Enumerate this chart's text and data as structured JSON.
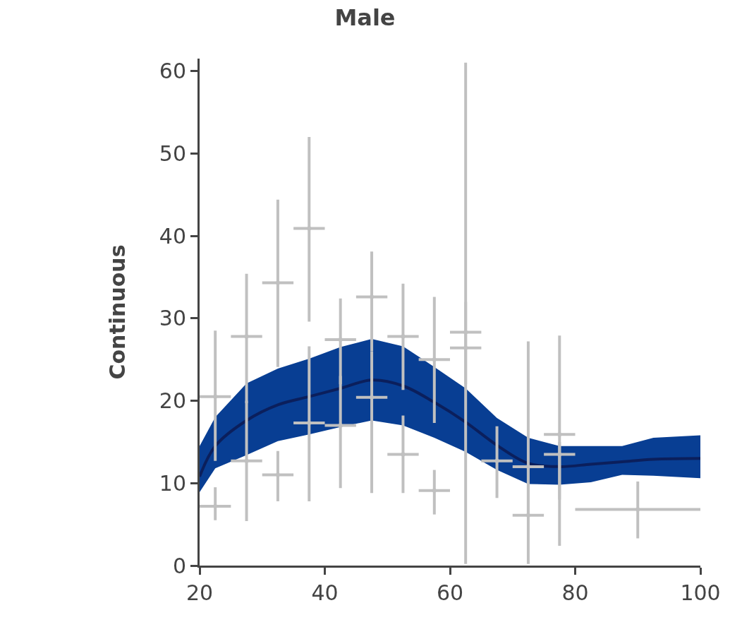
{
  "chart_data": {
    "type": "line",
    "title": "Male",
    "ylabel": "Continuous",
    "xlim": [
      20,
      100
    ],
    "xticks": [
      20,
      40,
      60,
      80,
      100
    ],
    "ylim": [
      0,
      61.5
    ],
    "yticks": [
      0,
      10,
      20,
      30,
      40,
      50,
      60
    ],
    "series": [
      {
        "type": "line",
        "color": "#0b1f5c",
        "x": [
          20,
          22.5,
          27.5,
          32.5,
          37.5,
          42.5,
          47.5,
          52.5,
          57.5,
          62.5,
          67.5,
          72.5,
          77.5,
          82.5,
          87.5,
          92.5,
          100
        ],
        "values": [
          10.8,
          14.5,
          17.6,
          19.5,
          20.5,
          21.5,
          22.5,
          21.8,
          19.8,
          17.4,
          14.6,
          12.4,
          12.0,
          12.3,
          12.6,
          12.9,
          13.0
        ],
        "lower": [
          8.9,
          11.8,
          13.4,
          15.1,
          15.9,
          16.8,
          17.6,
          17.0,
          15.5,
          13.8,
          11.6,
          9.9,
          9.8,
          10.1,
          11.0,
          10.9,
          10.6
        ],
        "upper": [
          14.5,
          18.0,
          22.1,
          23.9,
          25.1,
          26.5,
          27.5,
          26.6,
          24.1,
          21.5,
          17.9,
          15.5,
          14.5,
          14.5,
          14.5,
          15.5,
          15.8
        ]
      },
      {
        "type": "scatter",
        "color": "#c0c0c0",
        "marker": "none",
        "x": [
          22.5,
          22.5,
          27.5,
          27.5,
          32.5,
          32.5,
          37.5,
          37.5,
          42.5,
          42.5,
          47.5,
          47.5,
          52.5,
          52.5,
          57.5,
          57.5,
          62.5,
          62.5,
          67.5,
          72.5,
          72.5,
          77.5,
          77.5,
          90
        ],
        "values": [
          20.5,
          7.2,
          27.8,
          12.7,
          34.3,
          11.0,
          40.9,
          17.3,
          27.4,
          17.0,
          32.6,
          20.4,
          27.8,
          13.5,
          25.0,
          9.1,
          28.3,
          26.4,
          12.7,
          12.0,
          6.1,
          15.9,
          13.5,
          6.8
        ],
        "errors": [
          [
            12.7,
            28.5
          ],
          [
            5.5,
            9.5
          ],
          [
            19.7,
            35.4
          ],
          [
            5.4,
            20.0
          ],
          [
            24.1,
            44.4
          ],
          [
            7.8,
            13.9
          ],
          [
            29.6,
            52.0
          ],
          [
            7.8,
            26.6
          ],
          [
            22.0,
            32.4
          ],
          [
            9.4,
            23.0
          ],
          [
            26.0,
            38.1
          ],
          [
            8.8,
            26.0
          ],
          [
            21.3,
            34.2
          ],
          [
            8.8,
            18.2
          ],
          [
            17.3,
            32.6
          ],
          [
            6.2,
            11.6
          ],
          [
            22.0,
            61.0
          ],
          [
            0.2,
            32.0
          ],
          [
            8.2,
            16.9
          ],
          [
            6.0,
            27.2
          ],
          [
            0.2,
            12.0
          ],
          [
            8.0,
            27.9
          ],
          [
            2.4,
            15.0
          ],
          [
            3.3,
            10.2
          ]
        ],
        "xerrors": [
          2.5,
          2.5,
          2.5,
          2.5,
          2.5,
          2.5,
          2.5,
          2.5,
          2.5,
          2.5,
          2.5,
          2.5,
          2.5,
          2.5,
          2.5,
          2.5,
          2.5,
          2.5,
          2.5,
          2.5,
          2.5,
          2.5,
          2.5,
          10
        ]
      }
    ]
  }
}
